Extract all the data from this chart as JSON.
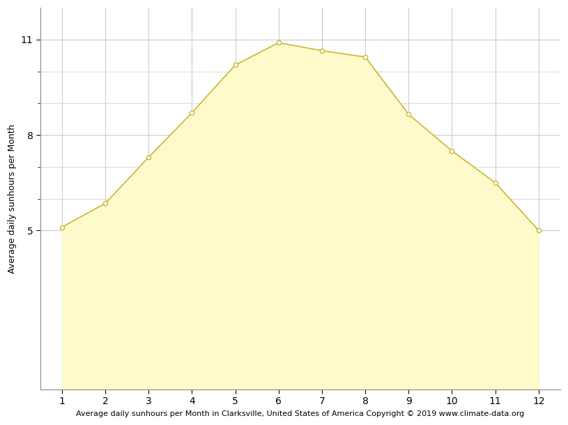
{
  "months": [
    1,
    2,
    3,
    4,
    5,
    6,
    7,
    8,
    9,
    10,
    11,
    12
  ],
  "sunhours": [
    5.1,
    5.85,
    7.3,
    8.7,
    10.2,
    10.9,
    10.65,
    10.45,
    8.65,
    7.5,
    6.5,
    5.0
  ],
  "fill_color": "#FFFACC",
  "line_color": "#C8B830",
  "marker_color": "white",
  "marker_edge_color": "#C8B830",
  "ylabel": "Average daily sunhours per Month",
  "xlabel": "Average daily sunhours per Month in Clarksville, United States of America Copyright © 2019 www.climate-data.org",
  "ylim_bottom": 0,
  "ylim_top": 12.0,
  "xlim": [
    0.5,
    12.5
  ],
  "yticks": [
    5,
    8,
    11
  ],
  "yminor_ticks": [
    5,
    6,
    7,
    8,
    9,
    10,
    11
  ],
  "xticks": [
    1,
    2,
    3,
    4,
    5,
    6,
    7,
    8,
    9,
    10,
    11,
    12
  ],
  "grid_color": "#cccccc",
  "background_color": "#ffffff",
  "axis_label_fontsize": 9,
  "tick_fontsize": 10,
  "xlabel_fontsize": 8
}
